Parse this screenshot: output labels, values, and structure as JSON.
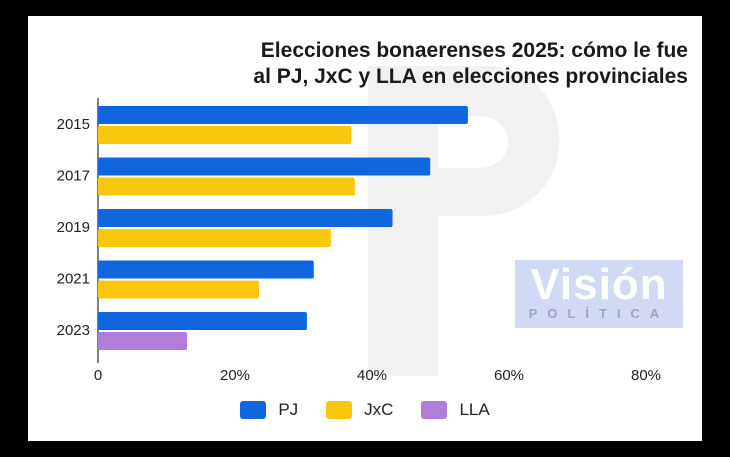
{
  "title_line1": "Elecciones bonaerenses 2025: cómo le fue",
  "title_line2": "al PJ, JxC y LLA en elecciones provinciales",
  "watermark": {
    "line1": "Visión",
    "line2": "POLÍTICA"
  },
  "chart_data": {
    "type": "bar",
    "orientation": "horizontal",
    "title": "Elecciones bonaerenses 2025: cómo le fue al PJ, JxC y LLA en elecciones provinciales",
    "categories": [
      "2015",
      "2017",
      "2019",
      "2021",
      "2023"
    ],
    "series": [
      {
        "name": "PJ",
        "color": "#1166e0",
        "values": [
          54,
          48.5,
          43,
          31.5,
          30.5
        ]
      },
      {
        "name": "JxC",
        "color": "#f9c80e",
        "values": [
          37,
          37.5,
          34,
          23.5,
          null
        ]
      },
      {
        "name": "LLA",
        "color": "#b07ed9",
        "values": [
          null,
          null,
          null,
          null,
          13
        ]
      }
    ],
    "xlim": [
      0,
      90
    ],
    "x_ticks": [
      "0",
      "20%",
      "40%",
      "60%",
      "80%"
    ],
    "x_tick_values": [
      0,
      20,
      40,
      60,
      80
    ],
    "grid": false,
    "legend_position": "bottom"
  }
}
